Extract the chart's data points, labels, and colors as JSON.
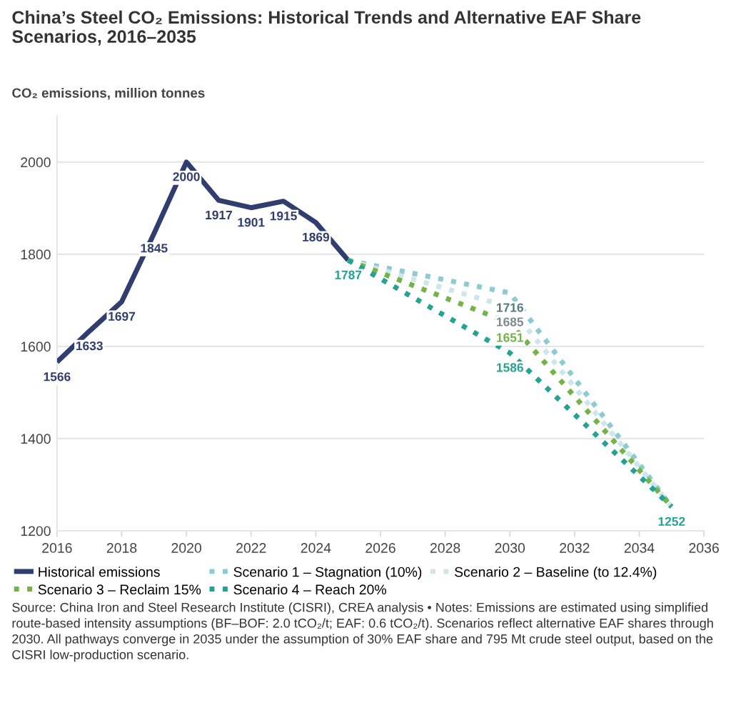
{
  "chart_data": {
    "type": "line",
    "title": "China’s Steel CO₂ Emissions: Historical Trends and Alternative EAF Share Scenarios, 2016–2035",
    "ylabel": "CO₂ emissions, million tonnes",
    "xlim": [
      2016,
      2036
    ],
    "xticks": [
      2016,
      2018,
      2020,
      2022,
      2024,
      2026,
      2028,
      2030,
      2032,
      2034,
      2036
    ],
    "ylim": [
      1200,
      2100
    ],
    "yticks": [
      1200,
      1400,
      1600,
      1800,
      2000
    ],
    "grid": "y",
    "legend": "bottom",
    "marker": "none",
    "series": [
      {
        "name": "Historical emissions",
        "color": "#2f3e6e",
        "line_style": "solid",
        "x": [
          2016,
          2017,
          2018,
          2019,
          2020,
          2021,
          2022,
          2023,
          2024,
          2025
        ],
        "values": [
          1566,
          1633,
          1697,
          1845,
          2000,
          1917,
          1901,
          1915,
          1869,
          1787
        ],
        "value_labels": [
          "1566",
          "1633",
          "1697",
          "1845",
          "2000",
          "1917",
          "1901",
          "1915",
          "1869",
          null
        ]
      },
      {
        "name": "Scenario 1 – Stagnation (10%)",
        "color": "#8ccbd2",
        "line_style": "dotted",
        "x": [
          2025,
          2030,
          2035
        ],
        "values": [
          1787,
          1716,
          1252
        ],
        "value_labels": [
          null,
          "1716",
          null
        ]
      },
      {
        "name": "Scenario 2 – Baseline (to 12.4%)",
        "color": "#cce6eb",
        "line_style": "dotted",
        "x": [
          2025,
          2030,
          2035
        ],
        "values": [
          1787,
          1685,
          1252
        ],
        "value_labels": [
          null,
          "1685",
          null
        ]
      },
      {
        "name": "Scenario 3 – Reclaim 15%",
        "color": "#74b447",
        "line_style": "dotted",
        "x": [
          2025,
          2030,
          2035
        ],
        "values": [
          1787,
          1651,
          1252
        ],
        "value_labels": [
          null,
          "1651",
          null
        ]
      },
      {
        "name": "Scenario 4 – Reach 20%",
        "color": "#23a394",
        "line_style": "dotted",
        "x": [
          2025,
          2030,
          2035
        ],
        "values": [
          1787,
          1586,
          1252
        ],
        "value_labels": [
          "1787",
          "1586",
          "1252"
        ]
      }
    ],
    "annotations": [
      "Source: China Iron and Steel Research Institute (CISRI), CREA analysis • Notes: Emissions are estimated using simplified route-based intensity assumptions (BF–BOF: 2.0 tCO₂/t; EAF: 0.6 tCO₂/t). Scenarios reflect alternative EAF shares through 2030. All pathways converge in 2035 under the assumption of 30% EAF share and 795 Mt crude steel output, based on the CISRI low-production scenario."
    ]
  }
}
